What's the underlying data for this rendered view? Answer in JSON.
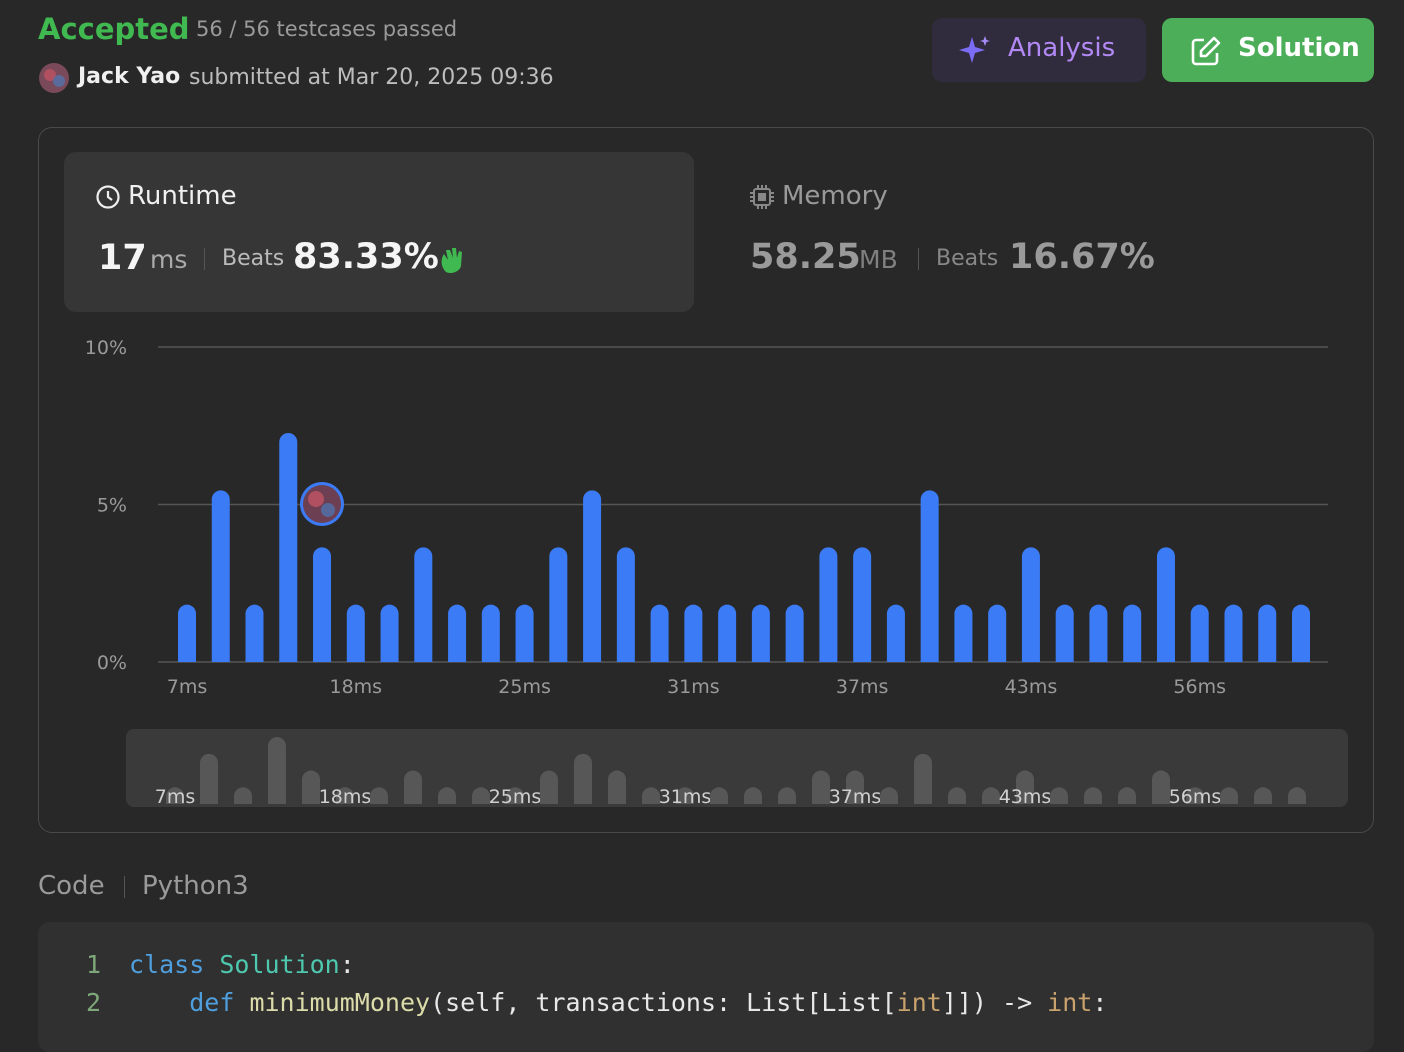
{
  "header": {
    "status": "Accepted",
    "testcases": "56 / 56 testcases passed",
    "user": "Jack Yao",
    "submitted": "submitted at Mar 20, 2025 09:36"
  },
  "buttons": {
    "analysis": "Analysis",
    "solution": "Solution"
  },
  "runtime": {
    "title": "Runtime",
    "value": "17",
    "unit": "ms",
    "beats_label": "Beats",
    "beats": "83.33%"
  },
  "memory": {
    "title": "Memory",
    "value": "58.25",
    "unit": "MB",
    "beats_label": "Beats",
    "beats": "16.67%"
  },
  "chart_data": {
    "type": "bar",
    "color": "#3b7cf6",
    "categories": [
      "7ms",
      null,
      null,
      null,
      null,
      "18ms",
      null,
      null,
      null,
      null,
      "25ms",
      null,
      null,
      null,
      null,
      "31ms",
      null,
      null,
      null,
      null,
      "37ms",
      null,
      null,
      null,
      null,
      "43ms",
      null,
      null,
      null,
      null,
      "56ms",
      null,
      null,
      null
    ],
    "values": [
      1.82,
      5.45,
      1.82,
      7.27,
      3.64,
      1.82,
      1.82,
      3.64,
      1.82,
      1.82,
      1.82,
      3.64,
      5.45,
      3.64,
      1.82,
      1.82,
      1.82,
      1.82,
      1.82,
      3.64,
      3.64,
      1.82,
      5.45,
      1.82,
      1.82,
      3.64,
      1.82,
      1.82,
      1.82,
      3.64,
      1.82,
      1.82,
      1.82,
      1.82
    ],
    "ylim": [
      0,
      10
    ],
    "yticks": [
      {
        "value": 0,
        "label": "0%"
      },
      {
        "value": 5,
        "label": "5%"
      },
      {
        "value": 10,
        "label": "10%"
      }
    ],
    "grid": true
  },
  "code": {
    "label": "Code",
    "language": "Python3",
    "line_numbers": [
      "1",
      "2"
    ],
    "lines": [
      [
        "class",
        " ",
        "Solution",
        ":"
      ],
      [
        "    ",
        "def",
        " ",
        "minimumMoney",
        "(self, transactions: List[List[",
        "int",
        "]]) -> ",
        "int",
        ":"
      ]
    ]
  }
}
